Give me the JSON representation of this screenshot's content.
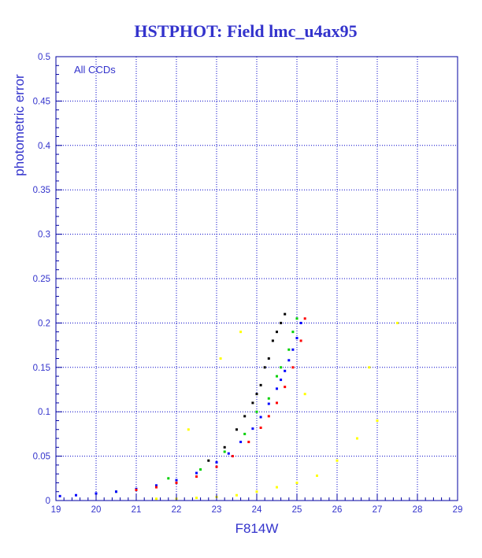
{
  "chart_data": {
    "type": "scatter",
    "title": "HSTPHOT: Field lmc_u4ax95",
    "xlabel": "F814W",
    "ylabel": "photometric error",
    "annotation": "All CCDs",
    "xlim": [
      19,
      29
    ],
    "ylim": [
      0,
      0.5
    ],
    "x_ticks": [
      "19",
      "20",
      "21",
      "22",
      "23",
      "24",
      "25",
      "26",
      "27",
      "28",
      "29"
    ],
    "y_ticks": [
      "0",
      "0.05",
      "0.1",
      "0.15",
      "0.2",
      "0.25",
      "0.3",
      "0.35",
      "0.4",
      "0.45",
      "0.5"
    ],
    "grid": true,
    "colors": {
      "text": "#3333cc",
      "axis": "#0000a0",
      "grid": "#0000c8",
      "blue_points": "#0000ff",
      "red_points": "#ff0000",
      "green_points": "#00d000",
      "black_points": "#000000",
      "yellow_points": "#ffff00"
    },
    "series": [
      {
        "color": "#0000ff",
        "x": [
          19.1,
          19.5,
          20.0,
          20.5,
          21.0,
          21.5,
          22.0,
          22.5,
          23.0,
          23.3,
          23.6,
          23.9,
          24.1,
          24.3,
          24.5,
          24.6,
          24.7,
          24.8,
          24.9,
          25.0,
          25.1
        ],
        "y": [
          0.005,
          0.006,
          0.008,
          0.01,
          0.013,
          0.017,
          0.023,
          0.031,
          0.043,
          0.053,
          0.066,
          0.081,
          0.094,
          0.109,
          0.126,
          0.136,
          0.146,
          0.158,
          0.17,
          0.183,
          0.2
        ]
      },
      {
        "color": "#ff0000",
        "x": [
          21.0,
          21.5,
          22.0,
          22.5,
          23.0,
          23.4,
          23.8,
          24.1,
          24.3,
          24.5,
          24.7,
          24.9,
          25.1,
          25.2
        ],
        "y": [
          0.012,
          0.015,
          0.02,
          0.027,
          0.038,
          0.05,
          0.066,
          0.082,
          0.095,
          0.11,
          0.128,
          0.15,
          0.18,
          0.205
        ]
      },
      {
        "color": "#00d000",
        "x": [
          20.5,
          21.8,
          22.6,
          23.2,
          23.7,
          24.0,
          24.3,
          24.5,
          24.6,
          24.8,
          24.9,
          25.0
        ],
        "y": [
          0.01,
          0.025,
          0.035,
          0.055,
          0.075,
          0.1,
          0.115,
          0.14,
          0.15,
          0.17,
          0.19,
          0.205
        ]
      },
      {
        "color": "#000000",
        "x": [
          22.8,
          23.2,
          23.5,
          23.7,
          23.9,
          24.0,
          24.1,
          24.2,
          24.3,
          24.4,
          24.5,
          24.6,
          24.7
        ],
        "y": [
          0.045,
          0.06,
          0.08,
          0.095,
          0.11,
          0.12,
          0.13,
          0.15,
          0.16,
          0.18,
          0.19,
          0.2,
          0.21
        ]
      },
      {
        "color": "#ffff00",
        "x": [
          21.5,
          22.0,
          22.5,
          23.0,
          23.5,
          24.0,
          24.5,
          25.0,
          25.5,
          26.0,
          26.5,
          27.0,
          22.3,
          23.1,
          23.6,
          25.2,
          26.8,
          27.5
        ],
        "y": [
          0.002,
          0.002,
          0.003,
          0.004,
          0.006,
          0.01,
          0.015,
          0.02,
          0.028,
          0.045,
          0.07,
          0.09,
          0.08,
          0.16,
          0.19,
          0.12,
          0.15,
          0.2
        ]
      }
    ]
  }
}
